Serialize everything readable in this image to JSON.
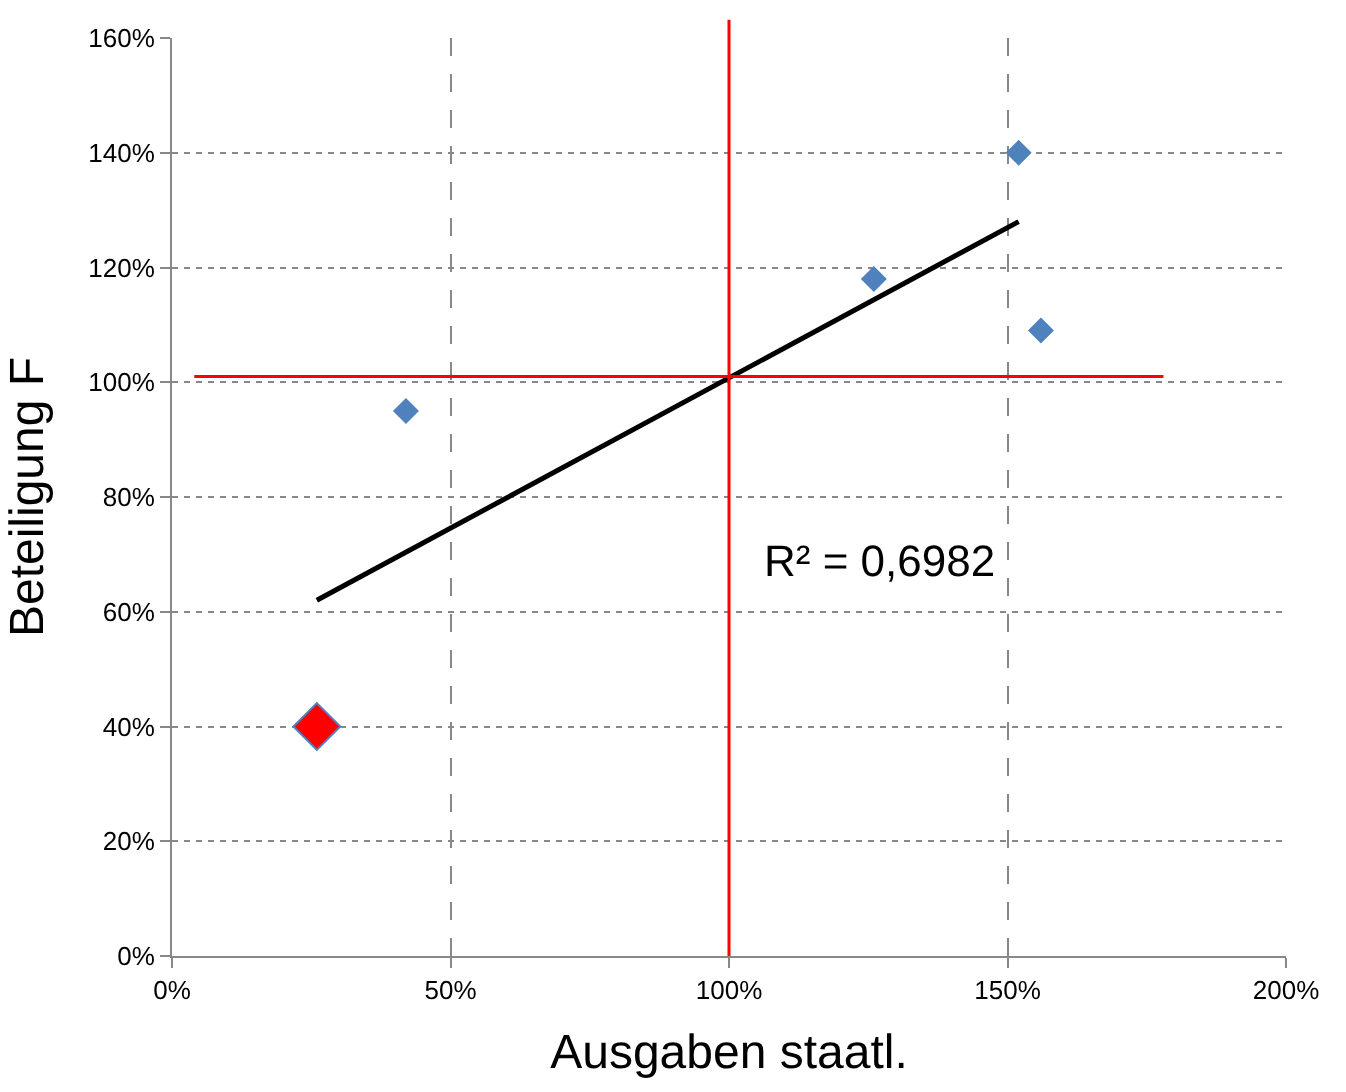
{
  "chart_data": {
    "type": "scatter",
    "xlabel": "Ausgaben staatl.",
    "ylabel": "Beteiligung F",
    "xlim": [
      0,
      200
    ],
    "ylim": [
      0,
      160
    ],
    "xticks": [
      {
        "value": 0,
        "label": "0%"
      },
      {
        "value": 50,
        "label": "50%"
      },
      {
        "value": 100,
        "label": "100%"
      },
      {
        "value": 150,
        "label": "150%"
      },
      {
        "value": 200,
        "label": "200%"
      }
    ],
    "yticks": [
      {
        "value": 0,
        "label": "0%"
      },
      {
        "value": 20,
        "label": "20%"
      },
      {
        "value": 40,
        "label": "40%"
      },
      {
        "value": 60,
        "label": "60%"
      },
      {
        "value": 80,
        "label": "80%"
      },
      {
        "value": 100,
        "label": "100%"
      },
      {
        "value": 120,
        "label": "120%"
      },
      {
        "value": 140,
        "label": "140%"
      },
      {
        "value": 160,
        "label": "160%"
      }
    ],
    "series": [
      {
        "color": "#4f81bd",
        "marker": "diamond",
        "x": [
          42,
          126,
          152,
          156
        ],
        "values": [
          95,
          118,
          140,
          109
        ]
      },
      {
        "color": "#ff0000",
        "marker": "diamond",
        "x": [
          26
        ],
        "values": [
          40
        ]
      },
      {
        "type": "line",
        "color": "#000000",
        "marker": "none",
        "x": [
          26,
          152
        ],
        "values": [
          62,
          128
        ]
      }
    ],
    "ref_lines": [
      {
        "axis": "x",
        "value": 100,
        "color": "#ff0000"
      },
      {
        "axis": "y",
        "value": 101,
        "color": "#ff0000"
      }
    ],
    "annotations": [
      "R² = 0,6982"
    ],
    "grid": true
  }
}
